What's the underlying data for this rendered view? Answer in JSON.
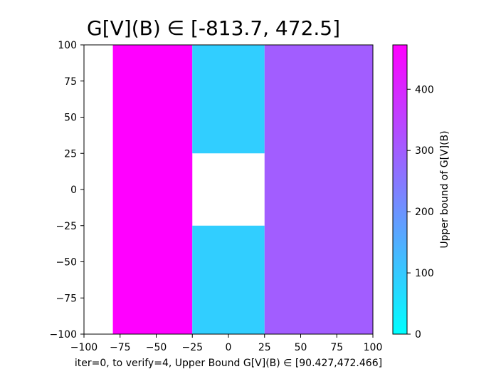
{
  "chart_data": {
    "type": "heatmap",
    "title": "G[V](B) ∈ [-813.7, 472.5]",
    "xlabel": "iter=0, to verify=4, Upper Bound G[V](B) ∈ [90.427,472.466]",
    "ylabel": "",
    "xlim": [
      -100,
      100
    ],
    "ylim": [
      -100,
      100
    ],
    "xticks": [
      -100,
      -75,
      -50,
      -25,
      0,
      25,
      50,
      75,
      100
    ],
    "xtick_labels": [
      "−100",
      "−75",
      "−50",
      "−25",
      "0",
      "25",
      "50",
      "75",
      "100"
    ],
    "yticks": [
      100,
      75,
      50,
      25,
      0,
      -25,
      -50,
      -75,
      -100
    ],
    "ytick_labels": [
      "100",
      "75",
      "50",
      "25",
      "0",
      "−25",
      "−50",
      "−75",
      "−100"
    ],
    "grid": false,
    "cells": [
      {
        "x": [
          -80,
          -25
        ],
        "y": [
          -100,
          100
        ],
        "value": 472.466
      },
      {
        "x": [
          -25,
          25
        ],
        "y": [
          25,
          100
        ],
        "value": 90.427
      },
      {
        "x": [
          -25,
          25
        ],
        "y": [
          -100,
          -25
        ],
        "value": 90.427
      },
      {
        "x": [
          25,
          100
        ],
        "y": [
          -100,
          100
        ],
        "value": 300
      }
    ],
    "colormap": "cool",
    "colorbar": {
      "label": "Upper bound of G[V](B)",
      "range": [
        0,
        472.466
      ],
      "ticks": [
        0,
        100,
        200,
        300,
        400
      ],
      "tick_labels": [
        "0",
        "100",
        "200",
        "300",
        "400"
      ],
      "colors": [
        "#00ffff",
        "#ff00ff"
      ]
    }
  }
}
